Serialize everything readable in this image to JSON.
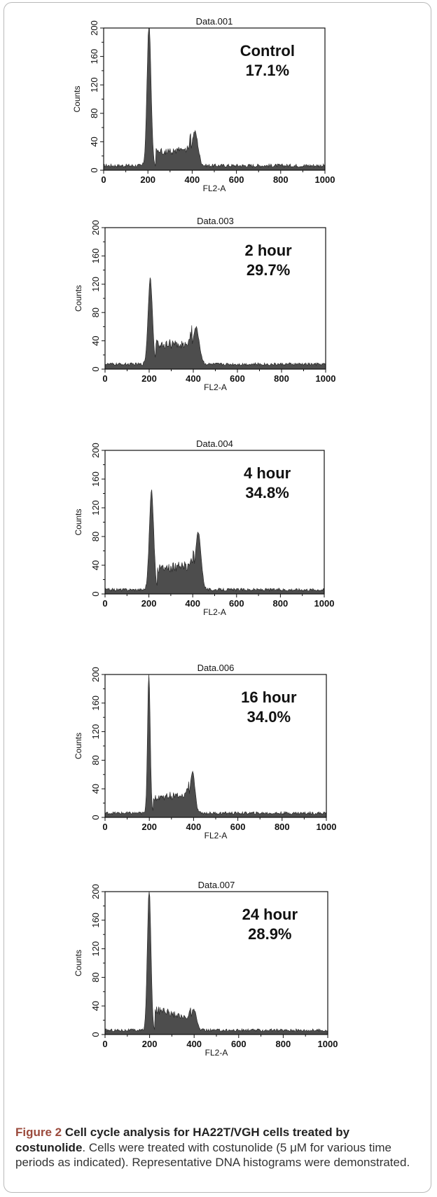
{
  "chart_data": [
    {
      "type": "area",
      "title": "Data.001",
      "xlabel": "FL2-A",
      "ylabel": "Counts",
      "xlim": [
        0,
        1000
      ],
      "ylim": [
        0,
        200
      ],
      "xticks": [
        "0",
        "200",
        "400",
        "600",
        "800",
        "1000"
      ],
      "yticks": [
        "0",
        "40",
        "80",
        "120",
        "160",
        "200"
      ],
      "annotation": [
        "Control",
        "17.1%"
      ],
      "fill_color": "#4d4d4d",
      "peaks": [
        {
          "x": 205,
          "y": 200,
          "sigma": 9
        },
        {
          "x": 412,
          "y": 48,
          "sigma": 14
        }
      ],
      "s_phase": {
        "x": [
          235,
          395
        ],
        "y": [
          20,
          22
        ]
      },
      "baseline": 4,
      "noise": 5
    },
    {
      "type": "area",
      "title": "Data.003",
      "xlabel": "FL2-A",
      "ylabel": "Counts",
      "xlim": [
        0,
        1000
      ],
      "ylim": [
        0,
        200
      ],
      "xticks": [
        "0",
        "200",
        "400",
        "600",
        "800",
        "1000"
      ],
      "yticks": [
        "0",
        "40",
        "80",
        "120",
        "160",
        "200"
      ],
      "annotation": [
        "2 hour",
        "29.7%"
      ],
      "fill_color": "#4d4d4d",
      "peaks": [
        {
          "x": 205,
          "y": 122,
          "sigma": 10
        },
        {
          "x": 412,
          "y": 52,
          "sigma": 15
        }
      ],
      "s_phase": {
        "x": [
          230,
          395
        ],
        "y": [
          28,
          28
        ]
      },
      "baseline": 5,
      "noise": 4
    },
    {
      "type": "area",
      "title": "Data.004",
      "xlabel": "FL2-A",
      "ylabel": "Counts",
      "xlim": [
        0,
        1000
      ],
      "ylim": [
        0,
        200
      ],
      "xticks": [
        "0",
        "200",
        "400",
        "600",
        "800",
        "1000"
      ],
      "yticks": [
        "0",
        "40",
        "80",
        "120",
        "160",
        "200"
      ],
      "annotation": [
        "4 hour",
        "34.8%"
      ],
      "fill_color": "#4d4d4d",
      "peaks": [
        {
          "x": 212,
          "y": 138,
          "sigma": 10
        },
        {
          "x": 425,
          "y": 80,
          "sigma": 13
        }
      ],
      "s_phase": {
        "x": [
          238,
          405
        ],
        "y": [
          30,
          34
        ]
      },
      "baseline": 4,
      "noise": 4
    },
    {
      "type": "area",
      "title": "Data.006",
      "xlabel": "FL2-A",
      "ylabel": "Counts",
      "xlim": [
        0,
        1000
      ],
      "ylim": [
        0,
        200
      ],
      "xticks": [
        "0",
        "200",
        "400",
        "600",
        "800",
        "1000"
      ],
      "yticks": [
        "0",
        "40",
        "80",
        "120",
        "160",
        "200"
      ],
      "annotation": [
        "16 hour",
        "34.0%"
      ],
      "fill_color": "#4d4d4d",
      "peaks": [
        {
          "x": 198,
          "y": 200,
          "sigma": 6
        },
        {
          "x": 395,
          "y": 58,
          "sigma": 11
        }
      ],
      "s_phase": {
        "x": [
          218,
          380
        ],
        "y": [
          22,
          26
        ]
      },
      "baseline": 4,
      "noise": 4
    },
    {
      "type": "area",
      "title": "Data.007",
      "xlabel": "FL2-A",
      "ylabel": "Counts",
      "xlim": [
        0,
        1000
      ],
      "ylim": [
        0,
        200
      ],
      "xticks": [
        "0",
        "200",
        "400",
        "600",
        "800",
        "1000"
      ],
      "yticks": [
        "0",
        "40",
        "80",
        "120",
        "160",
        "200"
      ],
      "annotation": [
        "24 hour",
        "28.9%"
      ],
      "fill_color": "#4d4d4d",
      "peaks": [
        {
          "x": 198,
          "y": 200,
          "sigma": 8
        },
        {
          "x": 398,
          "y": 30,
          "sigma": 12
        }
      ],
      "s_phase": {
        "x": [
          225,
          385
        ],
        "y": [
          30,
          16
        ]
      },
      "baseline": 4,
      "noise": 4
    }
  ],
  "caption": {
    "figure_label": "Figure 2",
    "title_part1": " Cell cycle analysis for HA22T/VGH cells treated by",
    "title_part2": "costunolide",
    "text": ". Cells were treated with costunolide (5 μM for various time periods as indicated). Representative DNA histograms were demonstrated."
  }
}
